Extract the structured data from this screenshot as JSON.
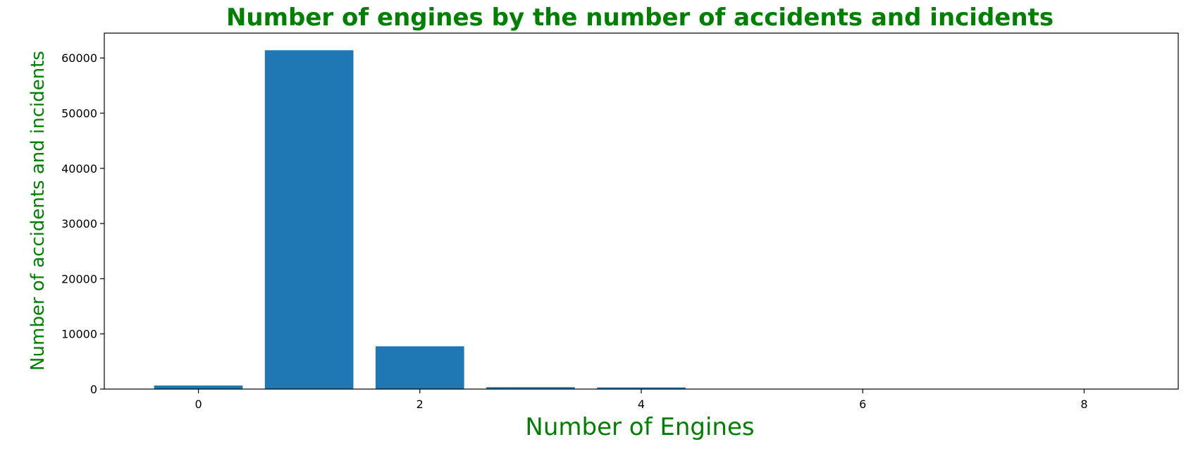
{
  "chart_data": {
    "type": "bar",
    "title": "Number of engines by the number of accidents and incidents",
    "xlabel": "Number of Engines",
    "ylabel": "Number of accidents and incidents",
    "title_color": "#008000",
    "label_color": "#008000",
    "bar_color": "#1f77b4",
    "x": [
      0,
      1,
      2,
      3,
      4,
      6,
      8
    ],
    "values": [
      650,
      61400,
      7750,
      350,
      300,
      0,
      0
    ],
    "xlim": [
      -0.85,
      8.85
    ],
    "ylim": [
      0,
      64500
    ],
    "x_ticks": [
      0,
      2,
      4,
      6,
      8
    ],
    "y_ticks": [
      0,
      10000,
      20000,
      30000,
      40000,
      50000,
      60000
    ],
    "grid": false,
    "legend": false
  }
}
